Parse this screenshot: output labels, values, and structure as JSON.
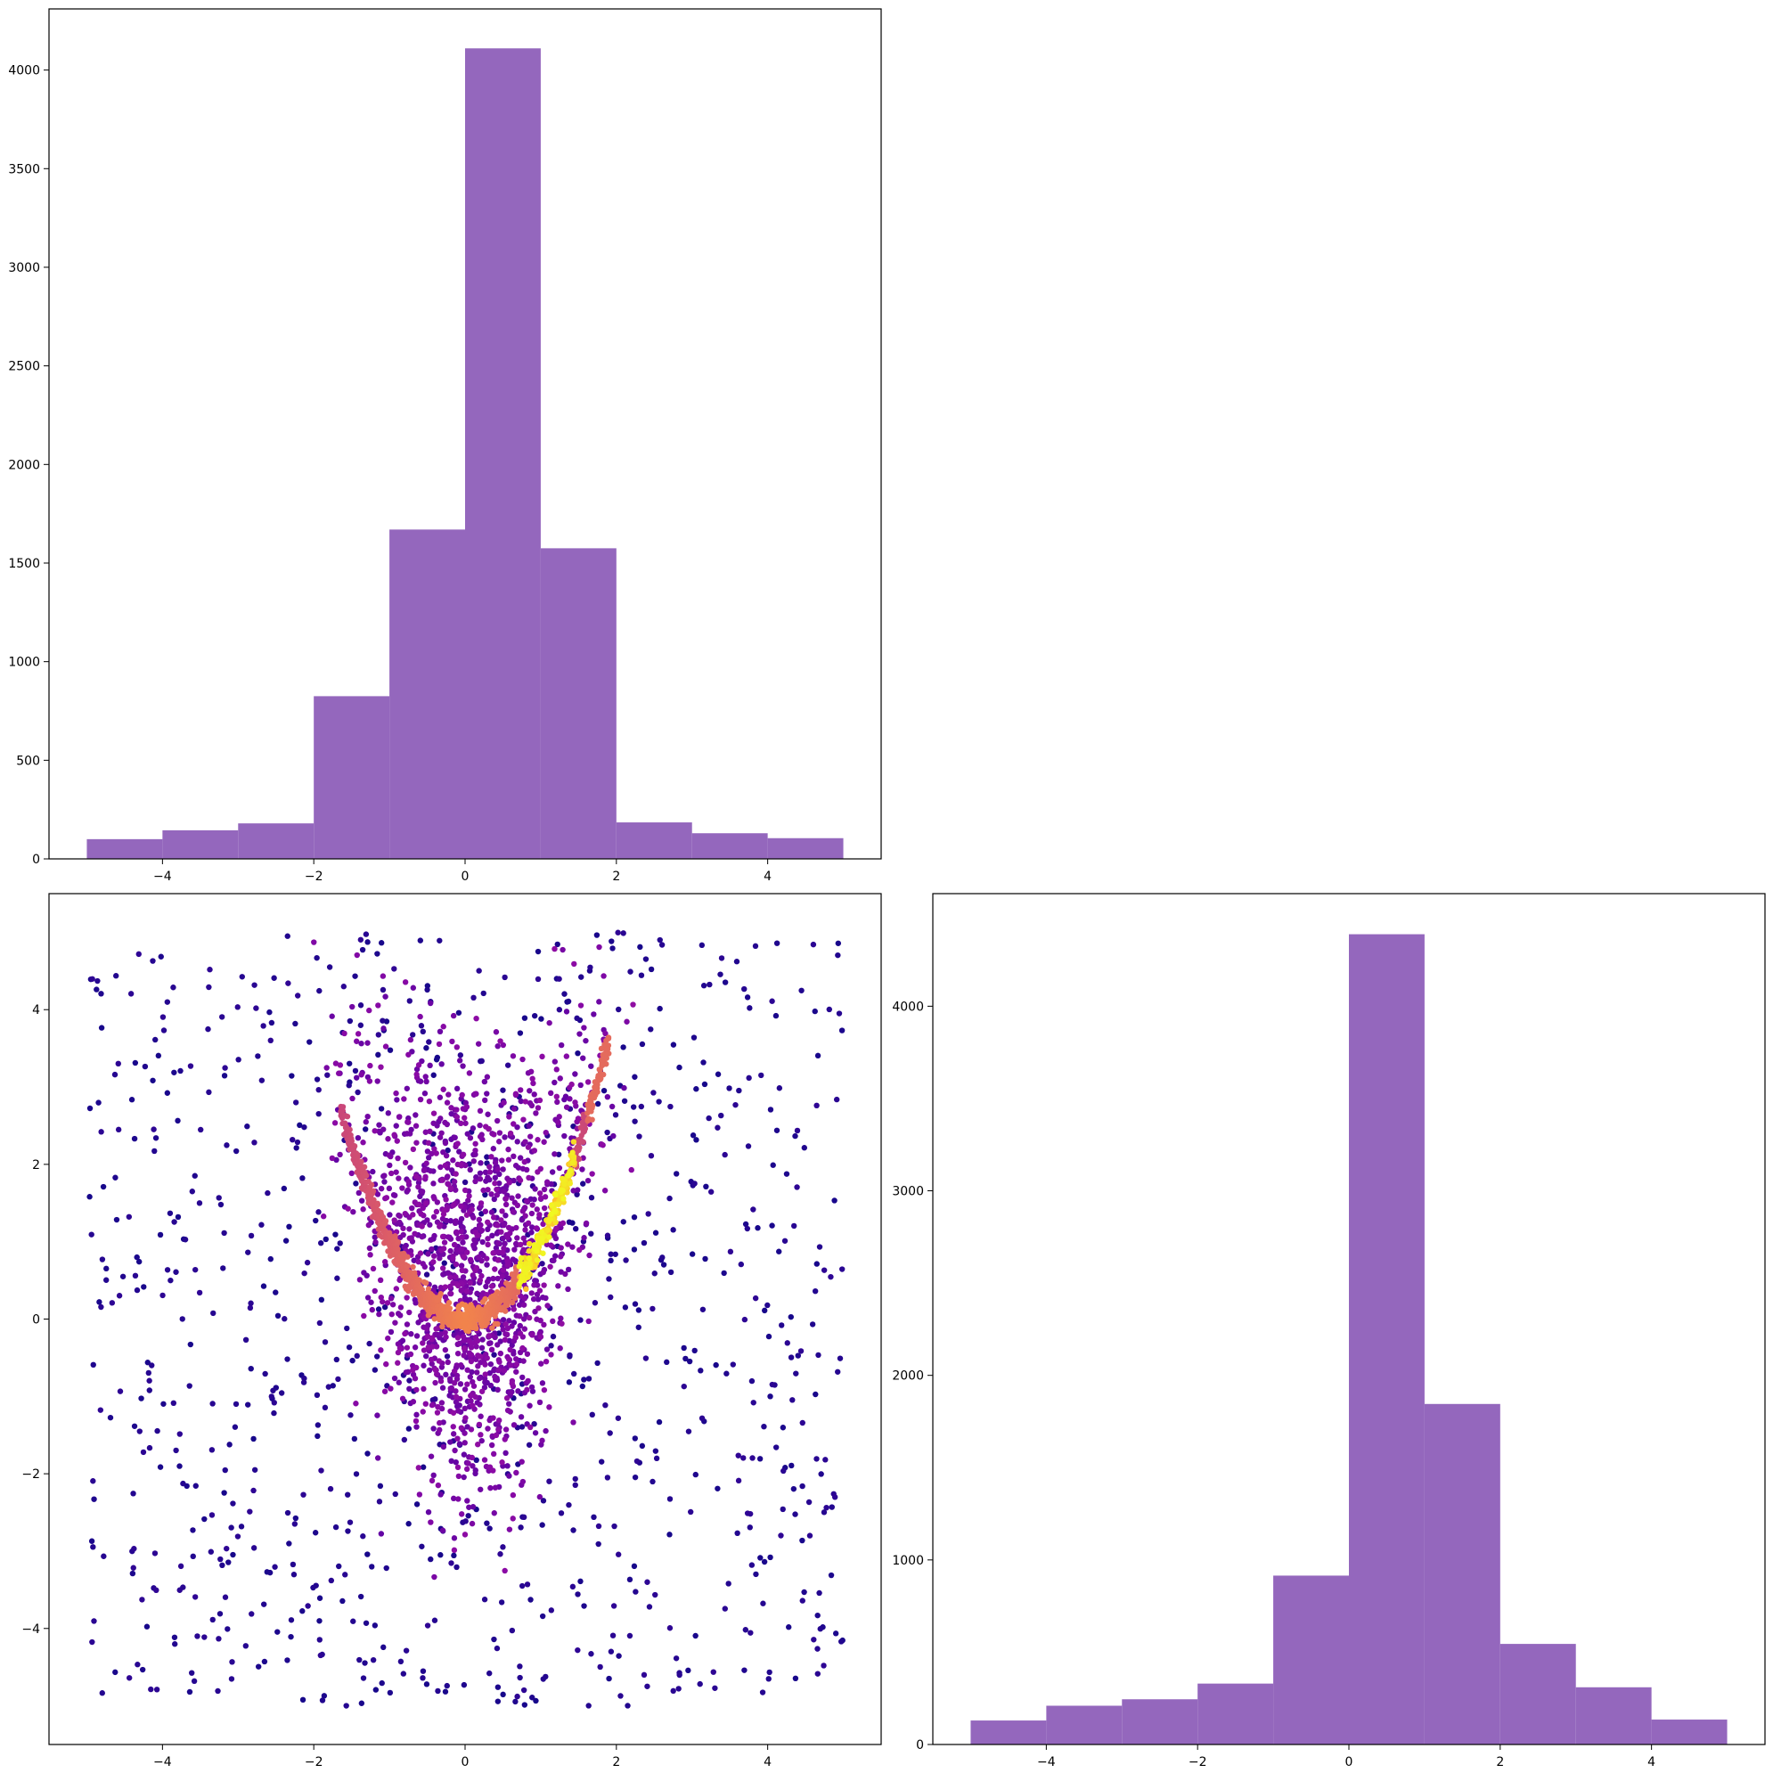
{
  "figure": {
    "panels": [
      "top-left histogram",
      "bottom-left scatter",
      "bottom-right histogram"
    ]
  },
  "chart_data": [
    {
      "id": "hist_x",
      "type": "bar",
      "title": "",
      "xlabel": "",
      "ylabel": "",
      "bin_edges": [
        -5,
        -4,
        -3,
        -2,
        -1,
        0,
        1,
        2,
        3,
        4,
        5
      ],
      "values": [
        100,
        145,
        180,
        825,
        1670,
        4110,
        1575,
        185,
        130,
        105
      ],
      "color": "#9467bd",
      "xlim": [
        -5.5,
        5.5
      ],
      "ylim": [
        0,
        4310
      ],
      "xticks": [
        -4,
        -2,
        0,
        2,
        4
      ],
      "yticks": [
        0,
        500,
        1000,
        1500,
        2000,
        2500,
        3000,
        3500,
        4000
      ],
      "grid": false
    },
    {
      "id": "scatter_xy",
      "type": "scatter",
      "title": "",
      "xlabel": "",
      "ylabel": "",
      "colormap": "plasma",
      "color_encoding": "point density",
      "xlim": [
        -5.5,
        5.5
      ],
      "ylim": [
        -5.5,
        5.5
      ],
      "xticks": [
        -4,
        -2,
        0,
        2,
        4
      ],
      "yticks": [
        -4,
        -2,
        0,
        2,
        4
      ],
      "grid": false,
      "structure": "dense parabolic band y = x^2 for x in [-1.7, 1.9] (brightest near x=1.1, y=1.2) over uniform background points in [-5,5] x [-5,5]",
      "series": [
        {
          "curve_points": [
            {
              "x": -1.6,
              "y": 2.56
            },
            {
              "x": -1.4,
              "y": 1.96
            },
            {
              "x": -1.2,
              "y": 1.44
            },
            {
              "x": -1.0,
              "y": 1.0
            },
            {
              "x": -0.8,
              "y": 0.64
            },
            {
              "x": -0.6,
              "y": 0.36
            },
            {
              "x": -0.4,
              "y": 0.16
            },
            {
              "x": -0.2,
              "y": 0.04
            },
            {
              "x": 0.0,
              "y": 0.0
            },
            {
              "x": 0.2,
              "y": 0.04
            },
            {
              "x": 0.4,
              "y": 0.16
            },
            {
              "x": 0.6,
              "y": 0.36
            },
            {
              "x": 0.8,
              "y": 0.64
            },
            {
              "x": 1.0,
              "y": 1.0
            },
            {
              "x": 1.2,
              "y": 1.44
            },
            {
              "x": 1.4,
              "y": 1.96
            },
            {
              "x": 1.6,
              "y": 2.56
            },
            {
              "x": 1.8,
              "y": 3.24
            },
            {
              "x": 1.9,
              "y": 3.61
            }
          ]
        }
      ]
    },
    {
      "id": "hist_y",
      "type": "bar",
      "title": "",
      "xlabel": "",
      "ylabel": "",
      "bin_edges": [
        -5,
        -4,
        -3,
        -2,
        -1,
        0,
        1,
        2,
        3,
        4,
        5
      ],
      "values": [
        130,
        210,
        245,
        330,
        915,
        4390,
        1845,
        545,
        310,
        135
      ],
      "color": "#9467bd",
      "xlim": [
        -5.5,
        5.5
      ],
      "ylim": [
        0,
        4610
      ],
      "xticks": [
        -4,
        -2,
        0,
        2,
        4
      ],
      "yticks": [
        0,
        1000,
        2000,
        3000,
        4000
      ],
      "grid": false
    }
  ]
}
